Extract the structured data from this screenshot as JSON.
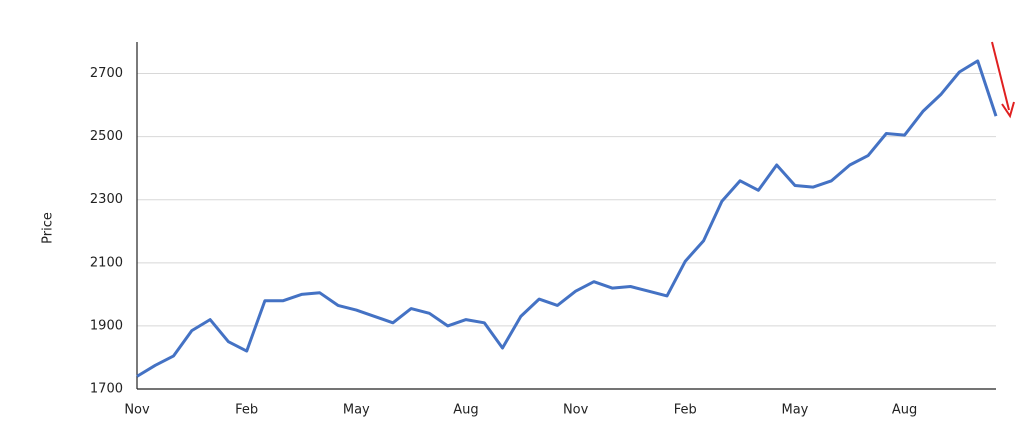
{
  "chart_data": {
    "type": "line",
    "y_label": "Price",
    "categories": [
      "Nov",
      null,
      null,
      null,
      null,
      null,
      "Feb",
      null,
      null,
      null,
      null,
      null,
      "May",
      null,
      null,
      null,
      null,
      null,
      "Aug",
      null,
      null,
      null,
      null,
      null,
      "Nov",
      null,
      null,
      null,
      null,
      null,
      "Feb",
      null,
      null,
      null,
      null,
      null,
      "May",
      null,
      null,
      null,
      null,
      null,
      "Aug",
      null,
      null,
      null,
      null,
      null
    ],
    "series": [
      {
        "name": "Price",
        "color": "#4472c4",
        "values": [
          1740,
          1775,
          1805,
          1885,
          1920,
          1850,
          1820,
          1980,
          1980,
          2000,
          2005,
          1965,
          1950,
          1930,
          1910,
          1955,
          1940,
          1900,
          1920,
          1910,
          1830,
          1930,
          1985,
          1965,
          2010,
          2040,
          2020,
          2025,
          2010,
          1995,
          2105,
          2170,
          2295,
          2360,
          2330,
          2410,
          2345,
          2340,
          2360,
          2410,
          2440,
          2510,
          2505,
          2580,
          2635,
          2705,
          2740,
          2565
        ]
      }
    ],
    "ylim": [
      1700,
      2800
    ],
    "yticks": [
      1700,
      1900,
      2100,
      2300,
      2500,
      2700
    ],
    "grid": true
  }
}
